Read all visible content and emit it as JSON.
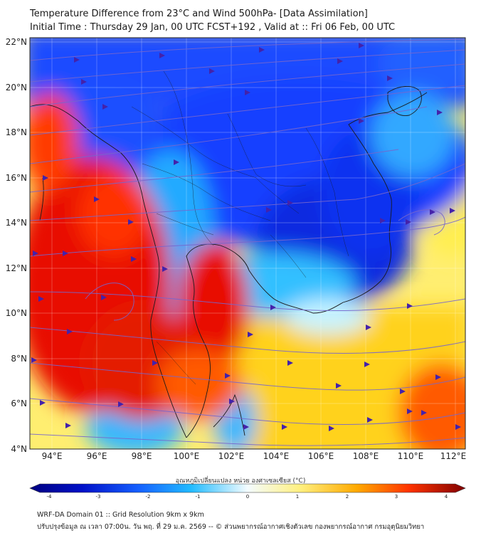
{
  "title": {
    "line1": "Temperature Difference from 23°C and Wind 500hPa- [Data Assimilation]",
    "line2": "Initial Time : Thursday 29 Jan, 00 UTC FCST+192 , Valid at ::  Fri 06 Feb, 00 UTC"
  },
  "map": {
    "lat_labels": [
      "22°N",
      "20°N",
      "18°N",
      "16°N",
      "14°N",
      "12°N",
      "10°N",
      "8°N",
      "6°N",
      "4°N"
    ],
    "lon_labels": [
      "94°E",
      "96°E",
      "98°E",
      "100°E",
      "102°E",
      "104°E",
      "106°E",
      "108°E",
      "110°E",
      "112°E"
    ],
    "colors": {
      "cold_strong": "#0022d8",
      "cold": "#1560ff",
      "cool": "#22bbff",
      "neutral": "#c8f4ff",
      "warm": "#fff080",
      "warmer": "#ffcc00",
      "hot": "#ff6600",
      "very_hot": "#e01000",
      "streamline": "#7766cc",
      "arrow": "#4422aa"
    }
  },
  "colorbar": {
    "label": "อุณหภูมิเปลี่ยนแปลง หน่วย องศาเซลเซียส (°C)",
    "ticks": [
      "-4",
      "-3",
      "-2",
      "-1",
      "0",
      "1",
      "2",
      "3",
      "4"
    ],
    "range": [
      -4,
      4
    ]
  },
  "footer": {
    "line1": "WRF-DA Domain 01 :: Grid Resolution 9km x 9km",
    "line2": "ปรับปรุงข้อมูล ณ เวลา 07:00น. วัน พฤ. ที่ 29 ม.ค. 2569 -- © ส่วนพยากรณ์อากาศเชิงตัวเลข กองพยากรณ์อากาศ กรมอุตุนิยมวิทยา"
  }
}
